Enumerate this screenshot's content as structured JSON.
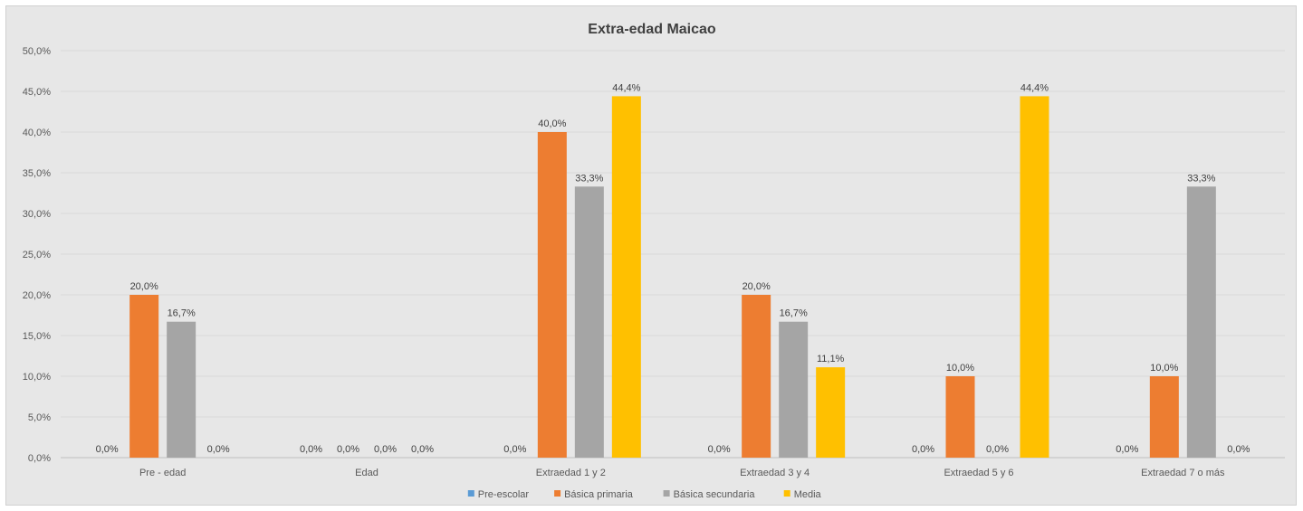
{
  "chart_data": {
    "type": "bar",
    "title": "Extra-edad Maicao",
    "categories": [
      "Pre - edad",
      "Edad",
      "Extraedad 1 y 2",
      "Extraedad 3 y 4",
      "Extraedad 5 y 6",
      "Extraedad 7 o más"
    ],
    "series": [
      {
        "name": "Pre-escolar",
        "color": "#5b9bd5",
        "values": [
          0.0,
          0.0,
          0.0,
          0.0,
          0.0,
          0.0
        ]
      },
      {
        "name": "Básica primaria",
        "color": "#ed7d31",
        "values": [
          20.0,
          0.0,
          40.0,
          20.0,
          10.0,
          10.0
        ]
      },
      {
        "name": "Básica secundaria",
        "color": "#a5a5a5",
        "values": [
          16.7,
          0.0,
          33.3,
          16.7,
          0.0,
          33.3
        ]
      },
      {
        "name": "Media",
        "color": "#ffc000",
        "values": [
          0.0,
          0.0,
          44.4,
          11.1,
          44.4,
          0.0
        ]
      }
    ],
    "ylim": [
      0,
      50
    ],
    "ytick_step": 5,
    "value_format": "percent-1-decimal-comma",
    "grid": true,
    "legend_position": "bottom"
  }
}
